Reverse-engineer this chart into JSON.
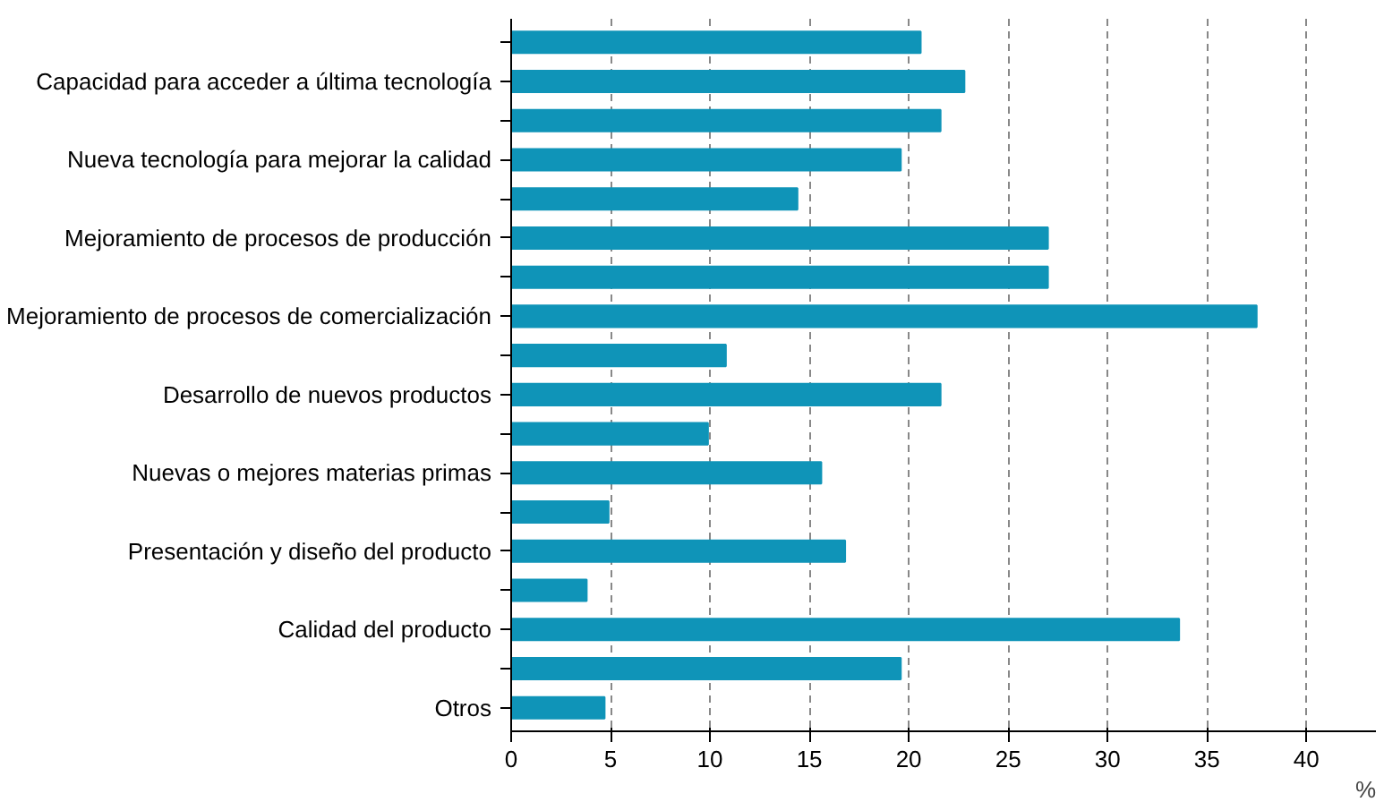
{
  "chart_data": {
    "type": "bar",
    "orientation": "horizontal",
    "xlabel": "%",
    "categories": [
      null,
      "Capacidad para acceder a última tecnología",
      null,
      "Nueva tecnología para mejorar la calidad",
      null,
      "Mejoramiento de procesos de producción",
      null,
      "Mejoramiento de procesos de comercialización",
      null,
      "Desarrollo de nuevos productos",
      null,
      "Nuevas o mejores materias primas",
      null,
      "Presentación y diseño del producto",
      null,
      "Calidad del producto",
      null,
      "Otros"
    ],
    "values": [
      20.6,
      22.8,
      21.6,
      19.6,
      14.4,
      27.0,
      27.0,
      37.5,
      10.8,
      21.6,
      9.9,
      15.6,
      4.9,
      16.8,
      3.8,
      33.6,
      19.6,
      4.7
    ],
    "color": "#0f94b8",
    "xlim": [
      0,
      43.5
    ],
    "xticks": [
      0,
      5,
      10,
      15,
      20,
      25,
      30,
      35,
      40
    ],
    "grid": "x"
  }
}
